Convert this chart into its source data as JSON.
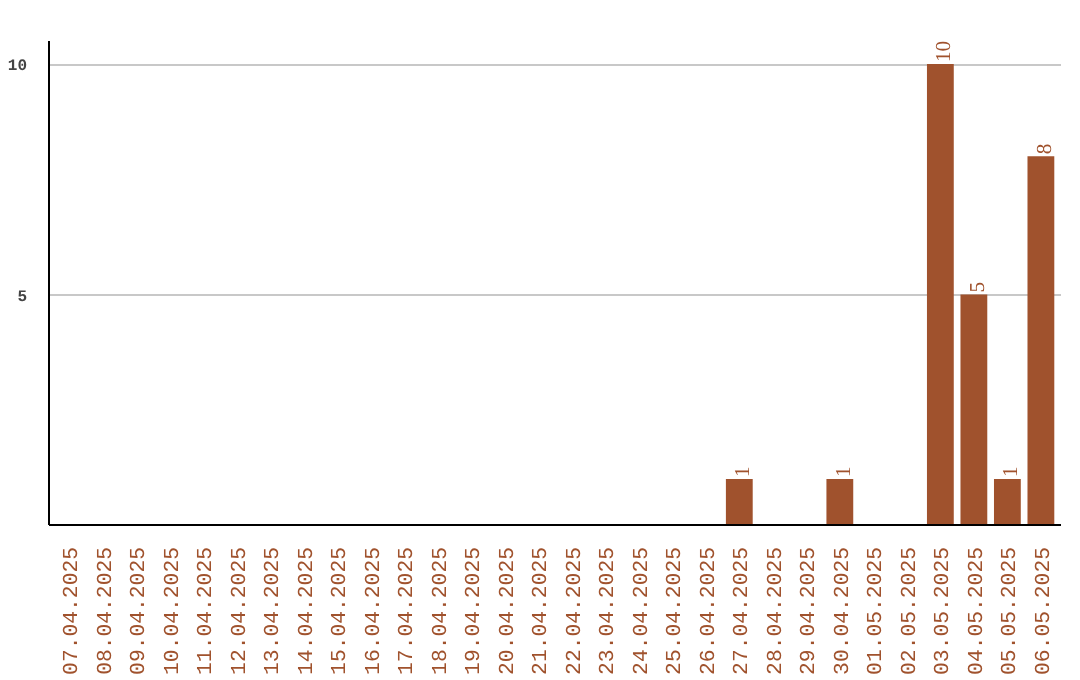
{
  "chart_data": {
    "type": "bar",
    "categories": [
      "07.04.2025",
      "08.04.2025",
      "09.04.2025",
      "10.04.2025",
      "11.04.2025",
      "12.04.2025",
      "13.04.2025",
      "14.04.2025",
      "15.04.2025",
      "16.04.2025",
      "17.04.2025",
      "18.04.2025",
      "19.04.2025",
      "20.04.2025",
      "21.04.2025",
      "22.04.2025",
      "23.04.2025",
      "24.04.2025",
      "25.04.2025",
      "26.04.2025",
      "27.04.2025",
      "28.04.2025",
      "29.04.2025",
      "30.04.2025",
      "01.05.2025",
      "02.05.2025",
      "03.05.2025",
      "04.05.2025",
      "05.05.2025",
      "06.05.2025"
    ],
    "values": [
      0,
      0,
      0,
      0,
      0,
      0,
      0,
      0,
      0,
      0,
      0,
      0,
      0,
      0,
      0,
      0,
      0,
      0,
      0,
      0,
      1,
      0,
      0,
      1,
      0,
      0,
      10,
      5,
      1,
      8
    ],
    "value_labels": [
      null,
      null,
      null,
      null,
      null,
      null,
      null,
      null,
      null,
      null,
      null,
      null,
      null,
      null,
      null,
      null,
      null,
      null,
      null,
      null,
      "1",
      null,
      null,
      "1",
      null,
      null,
      "10",
      "5",
      "1",
      "8"
    ],
    "color": "#a0522d",
    "ylim": [
      0,
      10.5
    ],
    "yticks": [
      5,
      10
    ],
    "grid": "y"
  }
}
